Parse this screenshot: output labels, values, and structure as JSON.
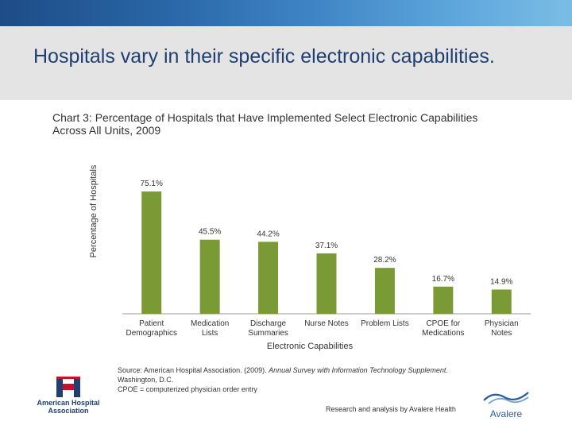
{
  "slide": {
    "title": "Hospitals vary in their specific electronic capabilities.",
    "research_credit": "Research and analysis by Avalere Health",
    "source_prefix": "Source: American Hospital Association. (2009). ",
    "source_italic": "Annual Survey with Information Technology Supplement",
    "source_suffix": ". Washington, D.C.",
    "source_note": "CPOE = computerized physician order entry",
    "aha_logo": {
      "icon": "aha-hospital-h-icon",
      "line1": "American Hospital",
      "line2": "Association"
    },
    "avalere_logo": {
      "icon": "avalere-wave-icon",
      "text": "Avalere"
    }
  },
  "colors": {
    "bar": "#7a9a35",
    "title": "#1f3f73",
    "axis": "#bdbdbd",
    "text": "#333333"
  },
  "chart_data": {
    "type": "bar",
    "title": "Chart 3: Percentage of Hospitals that Have Implemented Select Electronic Capabilities Across All Units, 2009",
    "xlabel": "Electronic Capabilities",
    "ylabel": "Percentage of Hospitals",
    "ylim": [
      0,
      100
    ],
    "grid": false,
    "categories": [
      [
        "Patient",
        "Demographics"
      ],
      [
        "Medication",
        "Lists"
      ],
      [
        "Discharge",
        "Summaries"
      ],
      [
        "Nurse Notes"
      ],
      [
        "Problem Lists"
      ],
      [
        "CPOE for",
        "Medications"
      ],
      [
        "Physician",
        "Notes"
      ]
    ],
    "values": [
      75.1,
      45.5,
      44.2,
      37.1,
      28.2,
      16.7,
      14.9
    ],
    "labels": [
      "75.1%",
      "45.5%",
      "44.2%",
      "37.1%",
      "28.2%",
      "16.7%",
      "14.9%"
    ]
  }
}
